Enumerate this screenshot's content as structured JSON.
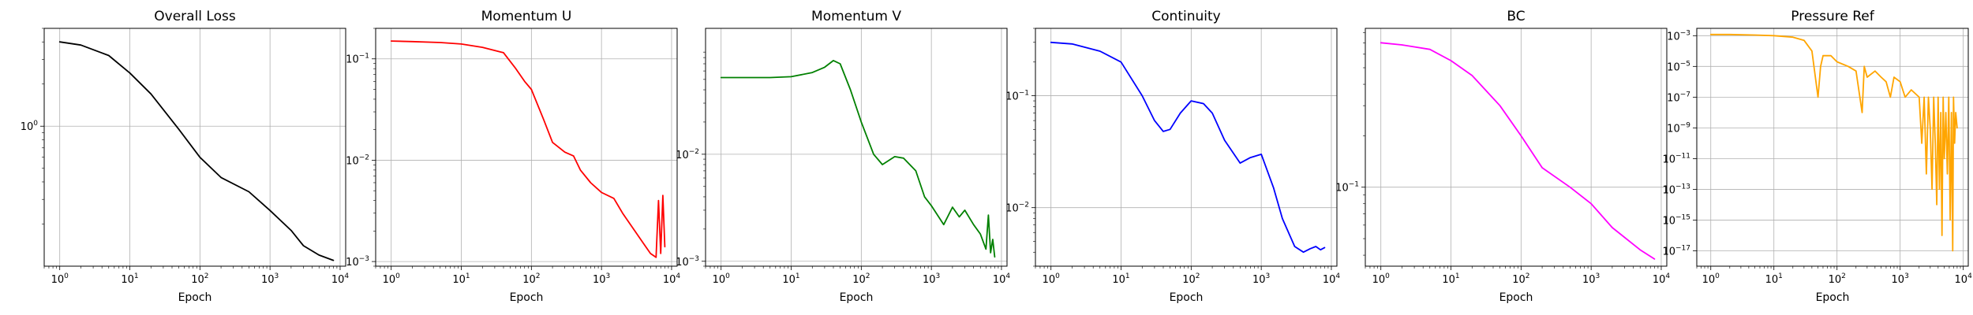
{
  "chart_data": [
    {
      "type": "line",
      "title": "Overall Loss",
      "xlabel": "Epoch",
      "ylabel": "",
      "xscale": "log",
      "yscale": "log",
      "grid": true,
      "color": "#000000",
      "xlim": [
        0.6,
        12000
      ],
      "ylim": [
        0.1,
        5.0
      ],
      "xticks": [
        {
          "base": "10",
          "exp": "0",
          "value": 1
        },
        {
          "base": "10",
          "exp": "1",
          "value": 10
        },
        {
          "base": "10",
          "exp": "2",
          "value": 100
        },
        {
          "base": "10",
          "exp": "3",
          "value": 1000
        },
        {
          "base": "10",
          "exp": "4",
          "value": 10000
        }
      ],
      "yticks": [
        {
          "base": "10",
          "exp": "0",
          "value": 1
        }
      ],
      "series": [
        {
          "x": [
            1,
            2,
            5,
            10,
            20,
            50,
            100,
            200,
            500,
            1000,
            2000,
            3000,
            5000,
            8000
          ],
          "y": [
            4.0,
            3.8,
            3.2,
            2.4,
            1.7,
            0.95,
            0.6,
            0.43,
            0.34,
            0.25,
            0.18,
            0.14,
            0.12,
            0.11
          ]
        }
      ]
    },
    {
      "type": "line",
      "title": "Momentum U",
      "xlabel": "Epoch",
      "ylabel": "",
      "xscale": "log",
      "yscale": "log",
      "grid": true,
      "color": "#ff0000",
      "xlim": [
        0.6,
        12000
      ],
      "ylim": [
        0.0009,
        0.2
      ],
      "xticks": [
        {
          "base": "10",
          "exp": "0",
          "value": 1
        },
        {
          "base": "10",
          "exp": "1",
          "value": 10
        },
        {
          "base": "10",
          "exp": "2",
          "value": 100
        },
        {
          "base": "10",
          "exp": "3",
          "value": 1000
        },
        {
          "base": "10",
          "exp": "4",
          "value": 10000
        }
      ],
      "yticks": [
        {
          "base": "10",
          "exp": "−3",
          "value": 0.001
        },
        {
          "base": "10",
          "exp": "−2",
          "value": 0.01
        },
        {
          "base": "10",
          "exp": "−1",
          "value": 0.1
        }
      ],
      "series": [
        {
          "x": [
            1,
            2,
            5,
            10,
            20,
            40,
            60,
            80,
            100,
            150,
            200,
            300,
            400,
            500,
            700,
            1000,
            1500,
            2000,
            3000,
            4000,
            5000,
            6000,
            6500,
            7000,
            7500,
            8000
          ],
          "y": [
            0.15,
            0.148,
            0.145,
            0.14,
            0.13,
            0.115,
            0.08,
            0.06,
            0.05,
            0.025,
            0.015,
            0.012,
            0.011,
            0.008,
            0.006,
            0.0048,
            0.0042,
            0.003,
            0.002,
            0.0015,
            0.0012,
            0.0011,
            0.004,
            0.0012,
            0.0045,
            0.0014
          ]
        }
      ]
    },
    {
      "type": "line",
      "title": "Momentum V",
      "xlabel": "Epoch",
      "ylabel": "",
      "xscale": "log",
      "yscale": "log",
      "grid": true,
      "color": "#008000",
      "xlim": [
        0.6,
        12000
      ],
      "ylim": [
        0.0009,
        0.15
      ],
      "xticks": [
        {
          "base": "10",
          "exp": "0",
          "value": 1
        },
        {
          "base": "10",
          "exp": "1",
          "value": 10
        },
        {
          "base": "10",
          "exp": "2",
          "value": 100
        },
        {
          "base": "10",
          "exp": "3",
          "value": 1000
        },
        {
          "base": "10",
          "exp": "4",
          "value": 10000
        }
      ],
      "yticks": [
        {
          "base": "10",
          "exp": "−3",
          "value": 0.001
        },
        {
          "base": "10",
          "exp": "−2",
          "value": 0.01
        }
      ],
      "series": [
        {
          "x": [
            1,
            2,
            5,
            10,
            20,
            30,
            40,
            50,
            70,
            100,
            150,
            200,
            300,
            400,
            600,
            800,
            1000,
            1500,
            2000,
            2500,
            3000,
            4000,
            5000,
            6000,
            6500,
            7000,
            7500,
            8000
          ],
          "y": [
            0.052,
            0.052,
            0.052,
            0.053,
            0.058,
            0.065,
            0.075,
            0.07,
            0.04,
            0.02,
            0.01,
            0.008,
            0.0095,
            0.0092,
            0.007,
            0.004,
            0.0033,
            0.0022,
            0.0032,
            0.0026,
            0.003,
            0.0022,
            0.0018,
            0.0013,
            0.0027,
            0.0012,
            0.0016,
            0.0011
          ]
        }
      ]
    },
    {
      "type": "line",
      "title": "Continuity",
      "xlabel": "Epoch",
      "ylabel": "",
      "xscale": "log",
      "yscale": "log",
      "grid": true,
      "color": "#0000ff",
      "xlim": [
        0.6,
        12000
      ],
      "ylim": [
        0.003,
        0.4
      ],
      "xticks": [
        {
          "base": "10",
          "exp": "0",
          "value": 1
        },
        {
          "base": "10",
          "exp": "1",
          "value": 10
        },
        {
          "base": "10",
          "exp": "2",
          "value": 100
        },
        {
          "base": "10",
          "exp": "3",
          "value": 1000
        },
        {
          "base": "10",
          "exp": "4",
          "value": 10000
        }
      ],
      "yticks": [
        {
          "base": "10",
          "exp": "−2",
          "value": 0.01
        },
        {
          "base": "10",
          "exp": "−1",
          "value": 0.1
        }
      ],
      "series": [
        {
          "x": [
            1,
            2,
            5,
            10,
            20,
            30,
            40,
            50,
            70,
            100,
            150,
            200,
            300,
            500,
            700,
            1000,
            1500,
            2000,
            3000,
            4000,
            5000,
            6000,
            7000,
            8000
          ],
          "y": [
            0.3,
            0.29,
            0.25,
            0.2,
            0.1,
            0.06,
            0.048,
            0.05,
            0.07,
            0.09,
            0.085,
            0.07,
            0.04,
            0.025,
            0.028,
            0.03,
            0.015,
            0.008,
            0.0045,
            0.004,
            0.0043,
            0.0045,
            0.0042,
            0.0044
          ]
        }
      ]
    },
    {
      "type": "line",
      "title": "BC",
      "xlabel": "Epoch",
      "ylabel": "",
      "xscale": "log",
      "yscale": "log",
      "grid": true,
      "color": "#ff00ff",
      "xlim": [
        0.6,
        12000
      ],
      "ylim": [
        0.0345,
        0.85
      ],
      "xticks": [
        {
          "base": "10",
          "exp": "0",
          "value": 1
        },
        {
          "base": "10",
          "exp": "1",
          "value": 10
        },
        {
          "base": "10",
          "exp": "2",
          "value": 100
        },
        {
          "base": "10",
          "exp": "3",
          "value": 1000
        },
        {
          "base": "10",
          "exp": "4",
          "value": 10000
        }
      ],
      "yticks": [
        {
          "base": "10",
          "exp": "−1",
          "value": 0.1
        }
      ],
      "series": [
        {
          "x": [
            1,
            2,
            5,
            10,
            20,
            50,
            100,
            200,
            500,
            1000,
            2000,
            5000,
            8000
          ],
          "y": [
            0.7,
            0.68,
            0.64,
            0.55,
            0.45,
            0.3,
            0.2,
            0.13,
            0.1,
            0.08,
            0.058,
            0.043,
            0.038
          ]
        }
      ]
    },
    {
      "type": "line",
      "title": "Pressure Ref",
      "xlabel": "Epoch",
      "ylabel": "",
      "xscale": "log",
      "yscale": "log",
      "grid": true,
      "color": "#ffa500",
      "xlim": [
        0.6,
        12000
      ],
      "ylim": [
        1e-18,
        0.003
      ],
      "xticks": [
        {
          "base": "10",
          "exp": "0",
          "value": 1
        },
        {
          "base": "10",
          "exp": "1",
          "value": 10
        },
        {
          "base": "10",
          "exp": "2",
          "value": 100
        },
        {
          "base": "10",
          "exp": "3",
          "value": 1000
        },
        {
          "base": "10",
          "exp": "4",
          "value": 10000
        }
      ],
      "yticks": [
        {
          "base": "10",
          "exp": "−17",
          "value": 1e-17
        },
        {
          "base": "10",
          "exp": "−15",
          "value": 1e-15
        },
        {
          "base": "10",
          "exp": "−13",
          "value": 1e-13
        },
        {
          "base": "10",
          "exp": "−11",
          "value": 1e-11
        },
        {
          "base": "10",
          "exp": "−9",
          "value": 1e-09
        },
        {
          "base": "10",
          "exp": "−7",
          "value": 1e-07
        },
        {
          "base": "10",
          "exp": "−5",
          "value": 1e-05
        },
        {
          "base": "10",
          "exp": "−3",
          "value": 0.001
        }
      ],
      "series": [
        {
          "x": [
            1,
            2,
            5,
            10,
            20,
            30,
            40,
            50,
            55,
            60,
            80,
            100,
            150,
            200,
            250,
            270,
            300,
            400,
            500,
            600,
            700,
            800,
            1000,
            1200,
            1500,
            2000,
            2200,
            2400,
            2600,
            2800,
            3000,
            3200,
            3400,
            3600,
            3800,
            4000,
            4200,
            4400,
            4600,
            4800,
            5000,
            5300,
            5600,
            5900,
            6200,
            6500,
            6800,
            7000,
            7300,
            7600,
            8000
          ],
          "y": [
            0.0012,
            0.0012,
            0.0011,
            0.001,
            0.0008,
            0.0005,
            0.0001,
            1e-07,
            1e-05,
            5e-05,
            5e-05,
            2e-05,
            1e-05,
            5e-06,
            1e-08,
            1e-05,
            2e-06,
            5e-06,
            2e-06,
            1e-06,
            1e-07,
            2e-06,
            1e-06,
            1e-07,
            3e-07,
            1e-07,
            1e-10,
            1e-07,
            1e-12,
            1e-07,
            1e-09,
            1e-13,
            1e-07,
            1e-10,
            1e-14,
            1e-07,
            1e-13,
            1e-08,
            1e-16,
            1e-07,
            1e-11,
            1e-08,
            1e-12,
            1e-07,
            1e-15,
            1e-08,
            1e-17,
            1e-07,
            1e-10,
            1e-08,
            1e-09
          ]
        }
      ]
    }
  ]
}
